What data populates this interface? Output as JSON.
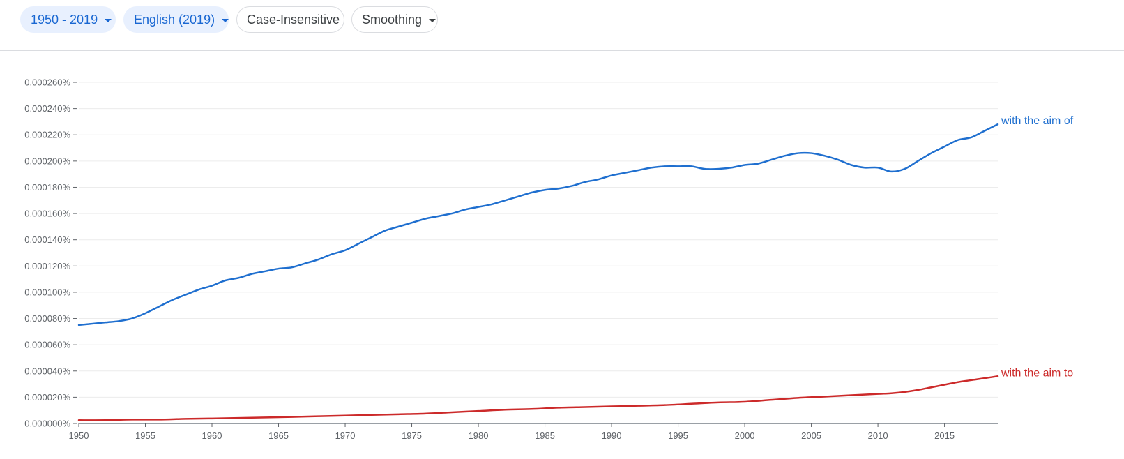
{
  "toolbar": {
    "year_range": "1950 - 2019",
    "corpus": "English (2019)",
    "case": "Case-Insensitive",
    "smoothing": "Smoothing"
  },
  "colors": {
    "accent": "#1967d2",
    "series_1": "#1f6fcf",
    "series_2": "#cc2a2a"
  },
  "chart_data": {
    "type": "line",
    "title": "",
    "xlabel": "",
    "ylabel": "",
    "xlim": [
      1950,
      2019
    ],
    "ylim": [
      0,
      0.00026
    ],
    "grid": true,
    "x_ticks": [
      1950,
      1955,
      1960,
      1965,
      1970,
      1975,
      1980,
      1985,
      1990,
      1995,
      2000,
      2005,
      2010,
      2015
    ],
    "y_ticks": [
      {
        "value": 0,
        "label": "0.000000%"
      },
      {
        "value": 2e-05,
        "label": "0.000020%"
      },
      {
        "value": 4e-05,
        "label": "0.000040%"
      },
      {
        "value": 6e-05,
        "label": "0.000060%"
      },
      {
        "value": 8e-05,
        "label": "0.000080%"
      },
      {
        "value": 0.0001,
        "label": "0.000100%"
      },
      {
        "value": 0.00012,
        "label": "0.000120%"
      },
      {
        "value": 0.00014,
        "label": "0.000140%"
      },
      {
        "value": 0.00016,
        "label": "0.000160%"
      },
      {
        "value": 0.00018,
        "label": "0.000180%"
      },
      {
        "value": 0.0002,
        "label": "0.000200%"
      },
      {
        "value": 0.00022,
        "label": "0.000220%"
      },
      {
        "value": 0.00024,
        "label": "0.000240%"
      },
      {
        "value": 0.00026,
        "label": "0.000260%"
      }
    ],
    "series": [
      {
        "name": "with the aim of",
        "color": "#1f6fcf",
        "points": [
          [
            1950,
            7.5e-05
          ],
          [
            1951,
            7.6e-05
          ],
          [
            1952,
            7.7e-05
          ],
          [
            1953,
            7.8e-05
          ],
          [
            1954,
            8e-05
          ],
          [
            1955,
            8.4e-05
          ],
          [
            1956,
            8.9e-05
          ],
          [
            1957,
            9.4e-05
          ],
          [
            1958,
            9.8e-05
          ],
          [
            1959,
            0.000102
          ],
          [
            1960,
            0.000105
          ],
          [
            1961,
            0.000109
          ],
          [
            1962,
            0.000111
          ],
          [
            1963,
            0.000114
          ],
          [
            1964,
            0.000116
          ],
          [
            1965,
            0.000118
          ],
          [
            1966,
            0.000119
          ],
          [
            1967,
            0.000122
          ],
          [
            1968,
            0.000125
          ],
          [
            1969,
            0.000129
          ],
          [
            1970,
            0.000132
          ],
          [
            1971,
            0.000137
          ],
          [
            1972,
            0.000142
          ],
          [
            1973,
            0.000147
          ],
          [
            1974,
            0.00015
          ],
          [
            1975,
            0.000153
          ],
          [
            1976,
            0.000156
          ],
          [
            1977,
            0.000158
          ],
          [
            1978,
            0.00016
          ],
          [
            1979,
            0.000163
          ],
          [
            1980,
            0.000165
          ],
          [
            1981,
            0.000167
          ],
          [
            1982,
            0.00017
          ],
          [
            1983,
            0.000173
          ],
          [
            1984,
            0.000176
          ],
          [
            1985,
            0.000178
          ],
          [
            1986,
            0.000179
          ],
          [
            1987,
            0.000181
          ],
          [
            1988,
            0.000184
          ],
          [
            1989,
            0.000186
          ],
          [
            1990,
            0.000189
          ],
          [
            1991,
            0.000191
          ],
          [
            1992,
            0.000193
          ],
          [
            1993,
            0.000195
          ],
          [
            1994,
            0.000196
          ],
          [
            1995,
            0.000196
          ],
          [
            1996,
            0.000196
          ],
          [
            1997,
            0.000194
          ],
          [
            1998,
            0.000194
          ],
          [
            1999,
            0.000195
          ],
          [
            2000,
            0.000197
          ],
          [
            2001,
            0.000198
          ],
          [
            2002,
            0.000201
          ],
          [
            2003,
            0.000204
          ],
          [
            2004,
            0.000206
          ],
          [
            2005,
            0.000206
          ],
          [
            2006,
            0.000204
          ],
          [
            2007,
            0.000201
          ],
          [
            2008,
            0.000197
          ],
          [
            2009,
            0.000195
          ],
          [
            2010,
            0.000195
          ],
          [
            2011,
            0.000192
          ],
          [
            2012,
            0.000194
          ],
          [
            2013,
            0.0002
          ],
          [
            2014,
            0.000206
          ],
          [
            2015,
            0.000211
          ],
          [
            2016,
            0.000216
          ],
          [
            2017,
            0.000218
          ],
          [
            2018,
            0.000223
          ],
          [
            2019,
            0.000228
          ]
        ]
      },
      {
        "name": "with the aim to",
        "color": "#cc2a2a",
        "points": [
          [
            1950,
            2.5e-06
          ],
          [
            1952,
            2.5e-06
          ],
          [
            1954,
            3e-06
          ],
          [
            1956,
            3e-06
          ],
          [
            1958,
            3.5e-06
          ],
          [
            1960,
            3.8e-06
          ],
          [
            1962,
            4.2e-06
          ],
          [
            1964,
            4.6e-06
          ],
          [
            1966,
            5e-06
          ],
          [
            1968,
            5.5e-06
          ],
          [
            1970,
            6e-06
          ],
          [
            1972,
            6.5e-06
          ],
          [
            1974,
            7e-06
          ],
          [
            1976,
            7.5e-06
          ],
          [
            1978,
            8.5e-06
          ],
          [
            1980,
            9.5e-06
          ],
          [
            1982,
            1.05e-05
          ],
          [
            1984,
            1.1e-05
          ],
          [
            1986,
            1.2e-05
          ],
          [
            1988,
            1.25e-05
          ],
          [
            1990,
            1.3e-05
          ],
          [
            1992,
            1.35e-05
          ],
          [
            1994,
            1.4e-05
          ],
          [
            1996,
            1.5e-05
          ],
          [
            1998,
            1.6e-05
          ],
          [
            2000,
            1.65e-05
          ],
          [
            2002,
            1.8e-05
          ],
          [
            2004,
            1.95e-05
          ],
          [
            2006,
            2.05e-05
          ],
          [
            2008,
            2.15e-05
          ],
          [
            2010,
            2.25e-05
          ],
          [
            2011,
            2.3e-05
          ],
          [
            2012,
            2.4e-05
          ],
          [
            2013,
            2.55e-05
          ],
          [
            2014,
            2.75e-05
          ],
          [
            2015,
            2.95e-05
          ],
          [
            2016,
            3.15e-05
          ],
          [
            2017,
            3.3e-05
          ],
          [
            2018,
            3.45e-05
          ],
          [
            2019,
            3.6e-05
          ]
        ]
      }
    ]
  }
}
